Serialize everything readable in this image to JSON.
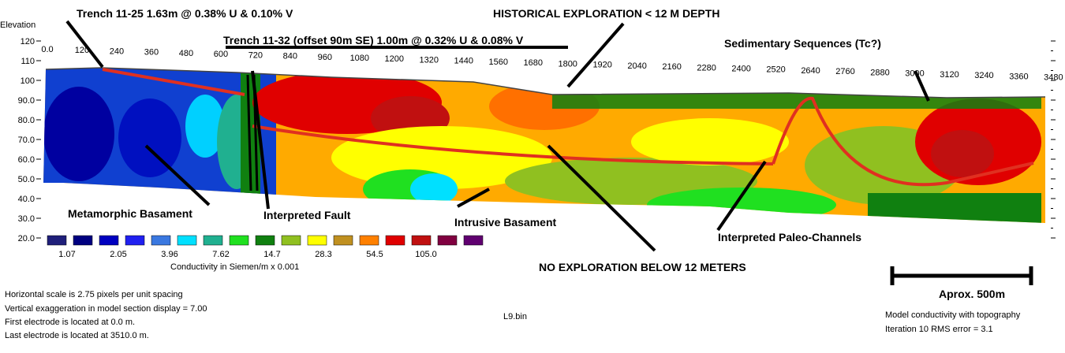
{
  "chart_data": {
    "type": "heatmap",
    "y_axis_label": "Elevation",
    "y_ticks": [
      "120",
      "110",
      "100",
      "90.0",
      "80.0",
      "70.0",
      "60.0",
      "50.0",
      "40.0",
      "30.0",
      "20.0"
    ],
    "y_tick_values": [
      120,
      110,
      100,
      90,
      80,
      70,
      60,
      50,
      40,
      30,
      20
    ],
    "x_ticks": [
      "0.0",
      "120",
      "240",
      "360",
      "480",
      "600",
      "720",
      "840",
      "960",
      "1080",
      "1200",
      "1320",
      "1440",
      "1560",
      "1680",
      "1800",
      "1920",
      "2040",
      "2160",
      "2280",
      "2400",
      "2520",
      "2640",
      "2760",
      "2880",
      "3000",
      "3120",
      "3240",
      "3360",
      "3480"
    ],
    "x_tick_values": [
      0,
      120,
      240,
      360,
      480,
      600,
      720,
      840,
      960,
      1080,
      1200,
      1320,
      1440,
      1560,
      1680,
      1800,
      1920,
      2040,
      2160,
      2280,
      2400,
      2520,
      2640,
      2760,
      2880,
      3000,
      3120,
      3240,
      3360,
      3480
    ],
    "ylim": [
      20,
      120
    ],
    "xlim": [
      0,
      3510
    ],
    "legend": {
      "title": "Conductivity in Siemen/m x 0.001",
      "colors": [
        "#1f1f7a",
        "#000080",
        "#0000c0",
        "#2020f0",
        "#3a78e0",
        "#00e0ff",
        "#20b090",
        "#20e020",
        "#108010",
        "#90c020",
        "#ffff00",
        "#c09020",
        "#ff8000",
        "#e00000",
        "#c01010",
        "#800040",
        "#600070"
      ],
      "labels": [
        "1.07",
        "2.05",
        "3.96",
        "7.62",
        "14.7",
        "28.3",
        "54.5",
        "105.0"
      ]
    },
    "annotations": {
      "trench_1": "Trench 11-25 1.63m @ 0.38% U & 0.10% V",
      "trench_2": "Trench 11-32 (offset 90m SE) 1.00m @ 0.32% U & 0.08% V",
      "historical": "HISTORICAL EXPLORATION < 12 M DEPTH",
      "sedimentary": "Sedimentary Sequences (Tc?)",
      "metamorphic": "Metamorphic Basament",
      "fault": "Interpreted Fault",
      "intrusive": "Intrusive Basament",
      "paleo": "Interpreted Paleo-Channels",
      "no_exploration": "NO EXPLORATION BELOW 12 METERS"
    },
    "scale_bar_label": "Aprox. 500m",
    "notes": [
      "Horizontal scale is 2.75 pixels per unit spacing",
      "Vertical exaggeration in model section display = 7.00",
      "First electrode is located at 0.0  m.",
      "Last electrode is located at 3510.0 m."
    ],
    "filename": "L9.bin",
    "model_info": [
      "Model conductivity with topography",
      "Iteration 10 RMS error = 3.1"
    ],
    "colors": {
      "interpretation_line": "#e03020",
      "annotation_line": "#000000"
    }
  }
}
